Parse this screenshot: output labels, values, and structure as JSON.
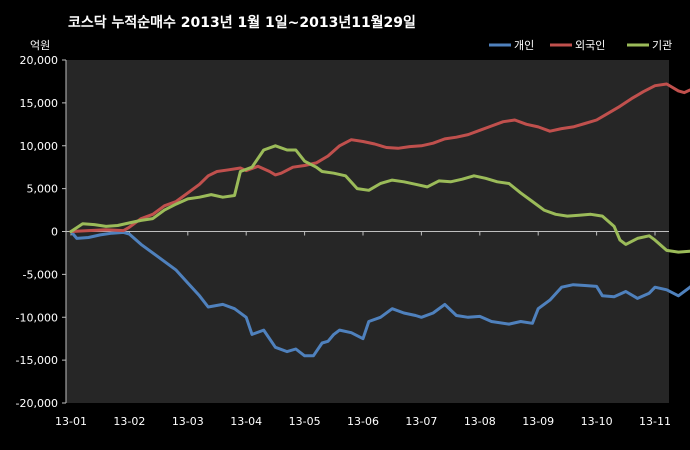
{
  "chart_data": {
    "type": "line",
    "title": "코스닥 누적순매수 2013년 1월 1일~2013년11월29일",
    "ylabel": "억원",
    "xlabel": "",
    "ylim": [
      -20000,
      20000
    ],
    "yticks": [
      20000,
      15000,
      10000,
      5000,
      0,
      -5000,
      -10000,
      -15000,
      -20000
    ],
    "ytick_labels": [
      "20,000",
      "15,000",
      "10,000",
      "5,000",
      "0",
      "-5,000",
      "-10,000",
      "-15,000",
      "-20,000"
    ],
    "xticks": [
      "13-01",
      "13-02",
      "13-03",
      "13-04",
      "13-05",
      "13-06",
      "13-07",
      "13-08",
      "13-09",
      "13-10",
      "13-11"
    ],
    "x_unit": "month index (0 = 13-01, 1 = 13-02, ...)",
    "xlim": [
      0,
      10.95
    ],
    "grid": false,
    "legend_position": "top-right",
    "series": [
      {
        "name": "개인",
        "color": "#4F81BD",
        "points": [
          [
            0,
            0
          ],
          [
            0.1,
            -800
          ],
          [
            0.3,
            -700
          ],
          [
            0.5,
            -400
          ],
          [
            0.7,
            -200
          ],
          [
            0.9,
            -100
          ],
          [
            1.0,
            -300
          ],
          [
            1.2,
            -1500
          ],
          [
            1.5,
            -3000
          ],
          [
            1.8,
            -4500
          ],
          [
            2.0,
            -6000
          ],
          [
            2.2,
            -7500
          ],
          [
            2.35,
            -8800
          ],
          [
            2.6,
            -8500
          ],
          [
            2.8,
            -9000
          ],
          [
            3.0,
            -10000
          ],
          [
            3.1,
            -12000
          ],
          [
            3.3,
            -11500
          ],
          [
            3.5,
            -13500
          ],
          [
            3.7,
            -14000
          ],
          [
            3.85,
            -13700
          ],
          [
            4.0,
            -14500
          ],
          [
            4.15,
            -14500
          ],
          [
            4.3,
            -13000
          ],
          [
            4.4,
            -12800
          ],
          [
            4.5,
            -12000
          ],
          [
            4.6,
            -11500
          ],
          [
            4.8,
            -11800
          ],
          [
            5.0,
            -12500
          ],
          [
            5.1,
            -10500
          ],
          [
            5.3,
            -10000
          ],
          [
            5.5,
            -9000
          ],
          [
            5.7,
            -9500
          ],
          [
            5.9,
            -9800
          ],
          [
            6.0,
            -10000
          ],
          [
            6.2,
            -9500
          ],
          [
            6.4,
            -8500
          ],
          [
            6.6,
            -9800
          ],
          [
            6.8,
            -10000
          ],
          [
            7.0,
            -9900
          ],
          [
            7.2,
            -10500
          ],
          [
            7.5,
            -10800
          ],
          [
            7.7,
            -10500
          ],
          [
            7.9,
            -10700
          ],
          [
            8.0,
            -9000
          ],
          [
            8.2,
            -8000
          ],
          [
            8.4,
            -6500
          ],
          [
            8.6,
            -6200
          ],
          [
            8.8,
            -6300
          ],
          [
            9.0,
            -6400
          ],
          [
            9.1,
            -7500
          ],
          [
            9.3,
            -7600
          ],
          [
            9.5,
            -7000
          ],
          [
            9.7,
            -7800
          ],
          [
            9.9,
            -7200
          ],
          [
            10.0,
            -6500
          ],
          [
            10.2,
            -6800
          ],
          [
            10.4,
            -7500
          ],
          [
            10.6,
            -6500
          ],
          [
            10.8,
            -5400
          ],
          [
            10.95,
            -5900
          ]
        ]
      },
      {
        "name": "외국인",
        "color": "#C0504D",
        "points": [
          [
            0,
            0
          ],
          [
            0.3,
            100
          ],
          [
            0.6,
            200
          ],
          [
            0.9,
            100
          ],
          [
            1.0,
            500
          ],
          [
            1.2,
            1500
          ],
          [
            1.4,
            2000
          ],
          [
            1.6,
            3000
          ],
          [
            1.8,
            3500
          ],
          [
            2.0,
            4500
          ],
          [
            2.2,
            5500
          ],
          [
            2.35,
            6500
          ],
          [
            2.5,
            7000
          ],
          [
            2.7,
            7200
          ],
          [
            2.9,
            7400
          ],
          [
            3.0,
            7100
          ],
          [
            3.2,
            7600
          ],
          [
            3.4,
            7000
          ],
          [
            3.5,
            6600
          ],
          [
            3.6,
            6800
          ],
          [
            3.8,
            7500
          ],
          [
            4.0,
            7700
          ],
          [
            4.2,
            8000
          ],
          [
            4.4,
            8800
          ],
          [
            4.6,
            10000
          ],
          [
            4.8,
            10700
          ],
          [
            5.0,
            10500
          ],
          [
            5.2,
            10200
          ],
          [
            5.4,
            9800
          ],
          [
            5.6,
            9700
          ],
          [
            5.8,
            9900
          ],
          [
            6.0,
            10000
          ],
          [
            6.2,
            10300
          ],
          [
            6.4,
            10800
          ],
          [
            6.6,
            11000
          ],
          [
            6.8,
            11300
          ],
          [
            7.0,
            11800
          ],
          [
            7.2,
            12300
          ],
          [
            7.4,
            12800
          ],
          [
            7.6,
            13000
          ],
          [
            7.8,
            12500
          ],
          [
            8.0,
            12200
          ],
          [
            8.2,
            11700
          ],
          [
            8.4,
            12000
          ],
          [
            8.6,
            12200
          ],
          [
            8.8,
            12600
          ],
          [
            9.0,
            13000
          ],
          [
            9.2,
            13800
          ],
          [
            9.4,
            14600
          ],
          [
            9.6,
            15500
          ],
          [
            9.8,
            16300
          ],
          [
            10.0,
            17000
          ],
          [
            10.2,
            17200
          ],
          [
            10.4,
            16400
          ],
          [
            10.5,
            16200
          ],
          [
            10.6,
            16500
          ],
          [
            10.8,
            16600
          ],
          [
            10.95,
            17000
          ]
        ]
      },
      {
        "name": "기관",
        "color": "#9BBB59",
        "points": [
          [
            0,
            0
          ],
          [
            0.2,
            900
          ],
          [
            0.4,
            800
          ],
          [
            0.6,
            600
          ],
          [
            0.8,
            700
          ],
          [
            1.0,
            1000
          ],
          [
            1.2,
            1300
          ],
          [
            1.4,
            1500
          ],
          [
            1.6,
            2500
          ],
          [
            1.8,
            3200
          ],
          [
            2.0,
            3800
          ],
          [
            2.2,
            4000
          ],
          [
            2.4,
            4300
          ],
          [
            2.6,
            4000
          ],
          [
            2.8,
            4200
          ],
          [
            2.9,
            7000
          ],
          [
            3.1,
            7500
          ],
          [
            3.3,
            9500
          ],
          [
            3.5,
            10000
          ],
          [
            3.7,
            9500
          ],
          [
            3.85,
            9500
          ],
          [
            4.0,
            8200
          ],
          [
            4.2,
            7500
          ],
          [
            4.3,
            7000
          ],
          [
            4.5,
            6800
          ],
          [
            4.7,
            6500
          ],
          [
            4.9,
            5000
          ],
          [
            5.1,
            4800
          ],
          [
            5.3,
            5600
          ],
          [
            5.5,
            6000
          ],
          [
            5.7,
            5800
          ],
          [
            5.9,
            5500
          ],
          [
            6.1,
            5200
          ],
          [
            6.3,
            5900
          ],
          [
            6.5,
            5800
          ],
          [
            6.7,
            6100
          ],
          [
            6.9,
            6500
          ],
          [
            7.1,
            6200
          ],
          [
            7.3,
            5800
          ],
          [
            7.5,
            5600
          ],
          [
            7.7,
            4500
          ],
          [
            7.9,
            3500
          ],
          [
            8.1,
            2500
          ],
          [
            8.3,
            2000
          ],
          [
            8.5,
            1800
          ],
          [
            8.7,
            1900
          ],
          [
            8.9,
            2000
          ],
          [
            9.1,
            1800
          ],
          [
            9.3,
            600
          ],
          [
            9.4,
            -1000
          ],
          [
            9.5,
            -1500
          ],
          [
            9.7,
            -800
          ],
          [
            9.9,
            -500
          ],
          [
            10.0,
            -1000
          ],
          [
            10.2,
            -2200
          ],
          [
            10.4,
            -2400
          ],
          [
            10.6,
            -2300
          ],
          [
            10.8,
            -2200
          ],
          [
            10.95,
            -2000
          ]
        ]
      }
    ]
  }
}
